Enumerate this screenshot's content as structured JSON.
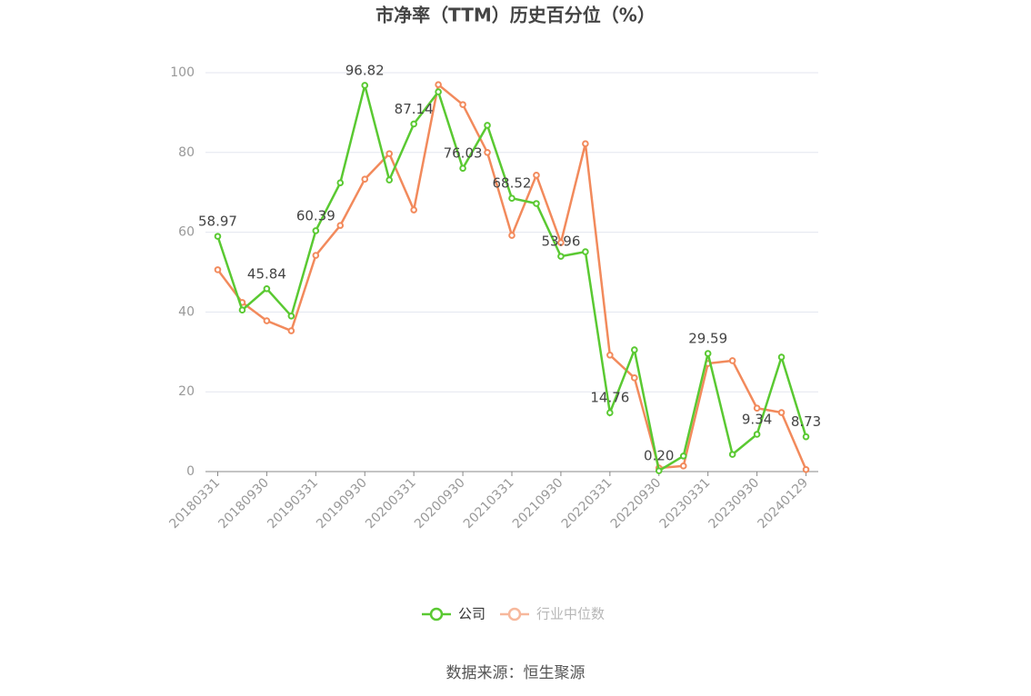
{
  "chart_data": {
    "type": "line",
    "title": "市净率（TTM）历史百分位（%）",
    "source": "数据来源：恒生聚源",
    "categories": [
      "20180331",
      null,
      "20180930",
      null,
      "20190331",
      null,
      "20190930",
      null,
      "20200331",
      null,
      "20200930",
      null,
      "20210331",
      null,
      "20210930",
      null,
      "20220331",
      null,
      "20220930",
      null,
      "20230331",
      null,
      "20230930",
      null,
      "20240129"
    ],
    "series": [
      {
        "name": "公司",
        "color": "#5ac932",
        "values": [
          58.97,
          40.5,
          45.84,
          39.0,
          60.39,
          72.4,
          96.82,
          73.1,
          87.14,
          95.2,
          76.03,
          86.8,
          68.52,
          67.2,
          53.96,
          55.1,
          14.76,
          30.5,
          0.2,
          3.9,
          29.59,
          4.3,
          9.34,
          28.7,
          8.73
        ],
        "value_labels": [
          "58.97",
          null,
          "45.84",
          null,
          "60.39",
          null,
          "96.82",
          null,
          "87.14",
          null,
          "76.03",
          null,
          "68.52",
          null,
          "53.96",
          null,
          "14.76",
          null,
          "0.20",
          null,
          "29.59",
          null,
          "9.34",
          null,
          "8.73"
        ]
      },
      {
        "name": "行业中位数",
        "color": "#f28a5c",
        "values": [
          50.6,
          42.4,
          37.8,
          35.3,
          54.2,
          61.7,
          73.3,
          79.7,
          65.6,
          97.0,
          92.0,
          80.0,
          59.2,
          74.3,
          57.4,
          82.2,
          29.2,
          23.5,
          0.9,
          1.4,
          27.1,
          27.8,
          15.9,
          14.8,
          0.5
        ]
      }
    ],
    "ylim": [
      0,
      100
    ],
    "yticks": [
      0,
      20,
      40,
      60,
      80,
      100
    ],
    "grid": true
  }
}
